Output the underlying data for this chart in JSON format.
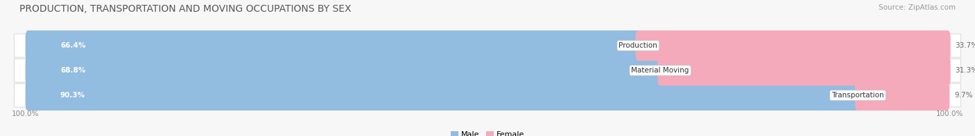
{
  "title": "PRODUCTION, TRANSPORTATION AND MOVING OCCUPATIONS BY SEX",
  "source": "Source: ZipAtlas.com",
  "categories": [
    "Transportation",
    "Material Moving",
    "Production"
  ],
  "male_pcts": [
    90.3,
    68.8,
    66.4
  ],
  "female_pcts": [
    9.7,
    31.3,
    33.7
  ],
  "male_color": "#92bce0",
  "female_color": "#f07090",
  "female_light_color": "#f5aabb",
  "row_bg_color": "#eeeeee",
  "row_border_color": "#dddddd",
  "bg_color": "#f7f7f7",
  "title_fontsize": 10,
  "source_fontsize": 7.5,
  "pct_label_fontsize": 7.5,
  "cat_label_fontsize": 7.5,
  "tick_fontsize": 7.5,
  "tick_label": "100.0%",
  "legend_male": "Male",
  "legend_female": "Female"
}
